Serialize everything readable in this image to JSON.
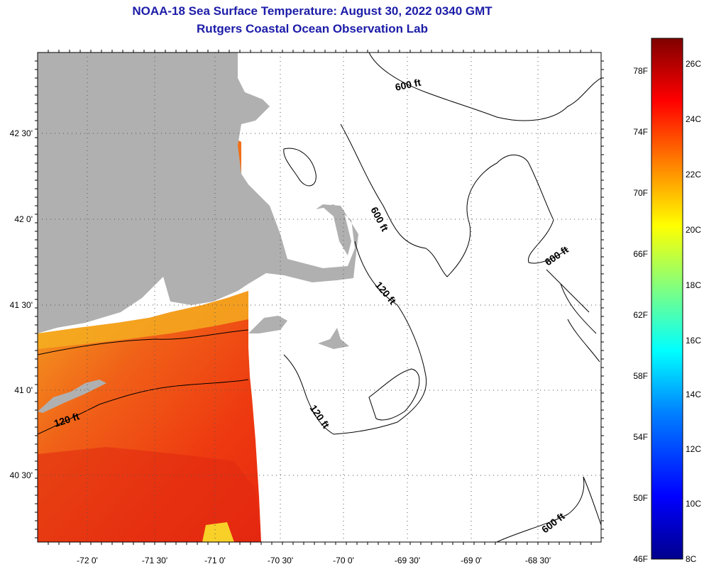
{
  "header": {
    "title": "NOAA-18 Sea Surface Temperature:  August 30, 2022 0340 GMT",
    "subtitle": "Rutgers Coastal Ocean Observation Lab"
  },
  "map": {
    "lon_labels": [
      "-72 0'",
      "-71 30'",
      "-71 0'",
      "-70 30'",
      "-70 0'",
      "-69 30'",
      "-69 0'",
      "-68 30'"
    ],
    "lat_labels": [
      "42 30'",
      "42 0'",
      "41 30'",
      "41 0'",
      "40 30'"
    ],
    "contour_labels": [
      "600 ft",
      "600 ft",
      "600 ft",
      "600 ft",
      "120 ft",
      "120 ft",
      "120 ft"
    ],
    "colors": {
      "land": "#b0b0b0",
      "water_sst": "#f04a10",
      "frame": "#000000"
    }
  },
  "colorbar": {
    "fahrenheit_labels": [
      "78F",
      "74F",
      "70F",
      "66F",
      "62F",
      "58F",
      "54F",
      "50F",
      "46F"
    ],
    "celsius_labels": [
      "26C",
      "24C",
      "22C",
      "20C",
      "18C",
      "16C",
      "14C",
      "12C",
      "10C",
      "8C"
    ],
    "range_celsius": [
      8,
      27
    ],
    "colors": [
      "#00008c",
      "#0000ff",
      "#0080ff",
      "#00ffff",
      "#80ff80",
      "#ffff00",
      "#ff8000",
      "#ff0000",
      "#800000"
    ]
  }
}
